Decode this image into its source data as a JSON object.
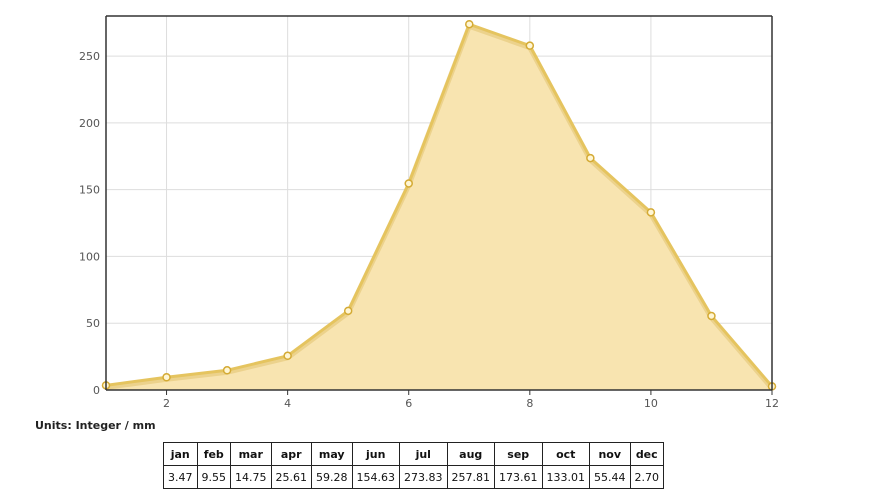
{
  "chart_data": {
    "type": "area",
    "x": [
      1,
      2,
      3,
      4,
      5,
      6,
      7,
      8,
      9,
      10,
      11,
      12
    ],
    "series": [
      {
        "values": [
          3.47,
          9.55,
          14.75,
          25.61,
          59.28,
          154.63,
          273.83,
          257.81,
          173.61,
          133.01,
          55.44,
          2.7
        ]
      }
    ],
    "xlim": [
      1,
      12
    ],
    "ylim": [
      0,
      280
    ],
    "xticks": [
      2,
      4,
      6,
      8,
      10,
      12
    ],
    "yticks": [
      0,
      50,
      100,
      150,
      200,
      250
    ],
    "grid": true,
    "colors": {
      "fill": "#f8e4b0",
      "line": "#e5c45f",
      "marker_fill": "#fff6d4",
      "marker_stroke": "#d4aa34",
      "grid": "#dddddd",
      "frame": "#333333"
    }
  },
  "units": "Units: Integer / mm",
  "table": {
    "headers": [
      "jan",
      "feb",
      "mar",
      "apr",
      "may",
      "jun",
      "jul",
      "aug",
      "sep",
      "oct",
      "nov",
      "dec"
    ],
    "values": [
      "3.47",
      "9.55",
      "14.75",
      "25.61",
      "59.28",
      "154.63",
      "273.83",
      "257.81",
      "173.61",
      "133.01",
      "55.44",
      "2.70"
    ]
  }
}
